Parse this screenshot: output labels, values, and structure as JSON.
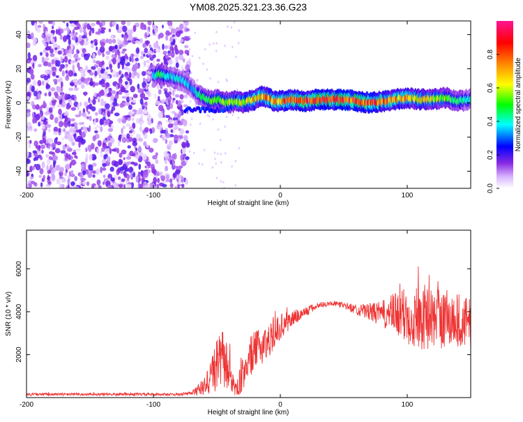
{
  "figure": {
    "title": "YM08.2025.321.23.36.G23"
  },
  "chart_data": [
    {
      "type": "heatmap",
      "name": "spectrogram",
      "xlabel": "Height of straight line (km)",
      "ylabel": "Frequency (Hz)",
      "xlim": [
        -200,
        150
      ],
      "ylim": [
        -50,
        48
      ],
      "xticks": [
        -200,
        -100,
        0,
        100
      ],
      "xtick_labels": [
        "-200",
        "-100",
        "0",
        "100"
      ],
      "yticks": [
        -40,
        -20,
        0,
        20,
        40
      ],
      "ytick_labels": [
        "-40",
        "-20",
        "0",
        "20",
        "40"
      ],
      "colorbar": {
        "label": "Normalized spectral amplitude",
        "range": [
          0,
          1
        ],
        "ticks": [
          0.0,
          0.2,
          0.4,
          0.6,
          0.8
        ],
        "tick_labels": [
          "0.0",
          "0.2",
          "0.4",
          "0.6",
          "0.8"
        ]
      },
      "ridge": {
        "x": [
          -100,
          -95,
          -90,
          -85,
          -80,
          -75,
          -70,
          -65,
          -60,
          -55,
          -50,
          -45,
          -40,
          -35,
          -30,
          -25,
          -20,
          -15,
          -10,
          -5,
          0,
          10,
          20,
          30,
          40,
          50,
          60,
          70,
          80,
          90,
          100,
          110,
          120,
          130,
          140,
          150
        ],
        "y": [
          16,
          17,
          16,
          15,
          14,
          12,
          9,
          5,
          3,
          1,
          2,
          1,
          0,
          1,
          0,
          1,
          2,
          4,
          3,
          1,
          1,
          2,
          1,
          2,
          2,
          2,
          1,
          0,
          1,
          2,
          3,
          2,
          2,
          3,
          1,
          2
        ],
        "amplitude": [
          0.45,
          0.5,
          0.45,
          0.4,
          0.4,
          0.38,
          0.35,
          0.42,
          0.5,
          0.55,
          0.55,
          0.6,
          0.6,
          0.62,
          0.65,
          0.7,
          0.72,
          0.72,
          0.78,
          0.8,
          0.82,
          0.85,
          0.88,
          0.88,
          0.9,
          0.9,
          0.9,
          0.88,
          0.82,
          0.78,
          0.75,
          0.7,
          0.65,
          0.6,
          0.5,
          0.45
        ]
      },
      "noise_region_x": [
        -200,
        -72
      ]
    },
    {
      "type": "line",
      "name": "snr",
      "xlabel": "Height of straight line (km)",
      "ylabel": "SNR (10 * v/v)",
      "xlim": [
        -200,
        150
      ],
      "ylim": [
        0,
        7800
      ],
      "xticks": [
        -200,
        -100,
        0,
        100
      ],
      "xtick_labels": [
        "-200",
        "-100",
        "0",
        "100"
      ],
      "yticks": [
        2000,
        4000,
        6000
      ],
      "ytick_labels": [
        "2000",
        "4000",
        "6000"
      ],
      "color": "#ee3333",
      "series": [
        {
          "name": "SNR",
          "x": [
            -200,
            -160,
            -120,
            -80,
            -70,
            -60,
            -55,
            -50,
            -45,
            -40,
            -35,
            -30,
            -25,
            -20,
            -10,
            0,
            10,
            20,
            30,
            40,
            50,
            60,
            70,
            80,
            90,
            100,
            110,
            120,
            130,
            140,
            150
          ],
          "values": [
            150,
            150,
            150,
            150,
            200,
            500,
            1000,
            1500,
            1800,
            1200,
            300,
            1000,
            1800,
            2200,
            2600,
            3300,
            3700,
            4000,
            4300,
            4400,
            4300,
            4100,
            4000,
            3900,
            3900,
            3800,
            3800,
            3700,
            3700,
            3600,
            3400
          ],
          "spread": [
            60,
            60,
            60,
            60,
            100,
            400,
            900,
            1200,
            1400,
            900,
            300,
            800,
            1000,
            900,
            800,
            600,
            400,
            250,
            150,
            100,
            150,
            250,
            400,
            600,
            1000,
            1400,
            1600,
            1400,
            1500,
            1300,
            1200
          ]
        }
      ]
    }
  ]
}
